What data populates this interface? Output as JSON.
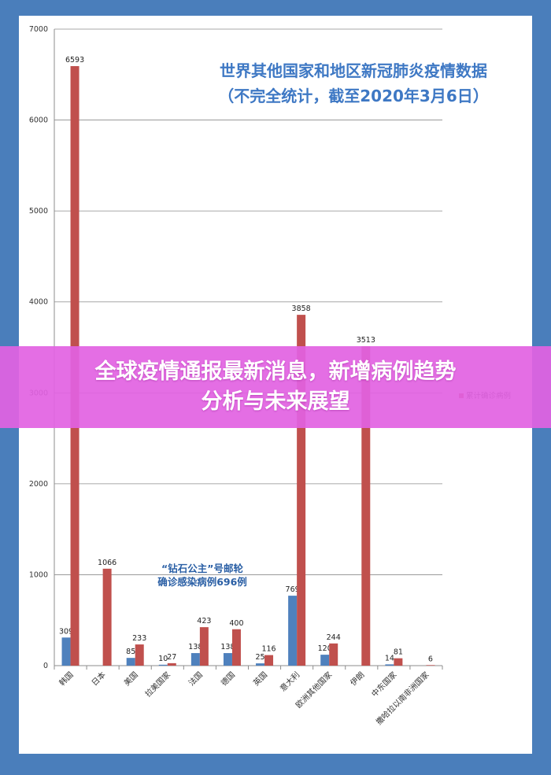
{
  "colors": {
    "red": "#c0504d",
    "blue": "#4f81bd",
    "title": "#3e78c4",
    "banner": "#e262e2"
  },
  "banner": {
    "line1": "全球疫情通报最新消息，新增病例趋势",
    "line2": "分析与未来展望"
  },
  "chart_data": {
    "type": "bar",
    "title_lines": [
      "世界其他国家和地区新冠肺炎疫情数据",
      "（不完全统计，截至2020年3月6日）"
    ],
    "ylim": [
      0,
      7000
    ],
    "yticks": [
      0,
      1000,
      2000,
      3000,
      4000,
      5000,
      6000,
      7000
    ],
    "categories": [
      "韩国",
      "日本",
      "美国",
      "拉美国家",
      "法国",
      "德国",
      "英国",
      "意大利",
      "欧洲其他国家",
      "伊朗",
      "中东国家",
      "撒哈拉以南非洲国家"
    ],
    "series": [
      {
        "name": "",
        "color": "#4f81bd",
        "values": [
          309,
          null,
          85,
          10,
          138,
          138,
          25,
          769,
          120,
          null,
          14,
          null
        ]
      },
      {
        "name": "累计确诊病例",
        "color": "#c0504d",
        "values": [
          6593,
          1066,
          233,
          27,
          423,
          400,
          116,
          3858,
          244,
          3513,
          81,
          6
        ]
      }
    ],
    "legend_position": "right",
    "annotation_lines": [
      "“钻石公主”号邮轮",
      "确诊感染病例696例"
    ]
  }
}
